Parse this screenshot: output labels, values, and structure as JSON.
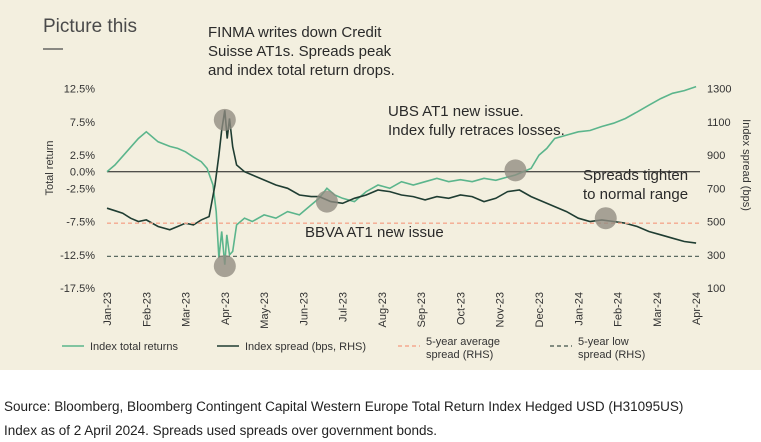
{
  "chart_data": {
    "type": "line",
    "title": "Picture this",
    "ylabel": "Total return",
    "y2label": "Index spread (bps)",
    "ylim": [
      -17.5,
      15
    ],
    "y2lim": [
      100,
      1400
    ],
    "yticks": [
      "12.5%",
      "7.5%",
      "2.5%",
      "0.0%",
      "-2.5%",
      "-7.5%",
      "-12.5%",
      "-17.5%"
    ],
    "yticks_values": [
      12.5,
      7.5,
      2.5,
      0,
      -2.5,
      -7.5,
      -12.5,
      -17.5
    ],
    "y2ticks": [
      "1300",
      "1100",
      "900",
      "700",
      "500",
      "300",
      "100"
    ],
    "y2ticks_values": [
      1300,
      1100,
      900,
      700,
      500,
      300,
      100
    ],
    "xticks": [
      "Jan-23",
      "Feb-23",
      "Mar-23",
      "Apr-23",
      "May-23",
      "Jun-23",
      "Jul-23",
      "Aug-23",
      "Sep-23",
      "Oct-23",
      "Nov-23",
      "Dec-23",
      "Jan-24",
      "Feb-24",
      "Mar-24",
      "Apr-24"
    ],
    "x_range": [
      0,
      15.1
    ],
    "grid": false,
    "legend_position": "bottom",
    "series": [
      {
        "name": "Index total returns",
        "axis": "left",
        "color": "#5bb58c",
        "x": [
          0,
          0.2,
          0.5,
          0.8,
          1.0,
          1.3,
          1.6,
          1.8,
          2.0,
          2.2,
          2.4,
          2.55,
          2.7,
          2.78,
          2.85,
          2.92,
          3.0,
          3.05,
          3.12,
          3.2,
          3.3,
          3.5,
          3.7,
          4.0,
          4.3,
          4.6,
          4.9,
          5.2,
          5.4,
          5.6,
          5.8,
          6.0,
          6.3,
          6.6,
          6.9,
          7.2,
          7.5,
          7.8,
          8.1,
          8.4,
          8.7,
          9.0,
          9.3,
          9.6,
          9.9,
          10.2,
          10.4,
          10.6,
          10.8,
          11.0,
          11.2,
          11.4,
          11.7,
          12.0,
          12.3,
          12.6,
          12.9,
          13.2,
          13.5,
          13.8,
          14.1,
          14.4,
          14.7,
          15.0
        ],
        "y": [
          0,
          1.0,
          3.0,
          5.0,
          6.0,
          4.5,
          3.8,
          3.5,
          3.0,
          2.2,
          1.5,
          0.5,
          -2.0,
          -6.0,
          -13.0,
          -9.0,
          -14.0,
          -9.5,
          -12.5,
          -12.0,
          -8.0,
          -7.0,
          -7.5,
          -6.5,
          -7.0,
          -6.0,
          -6.5,
          -5.0,
          -4.0,
          -2.5,
          -3.5,
          -4.0,
          -4.5,
          -3.0,
          -2.0,
          -2.5,
          -1.5,
          -2.0,
          -1.5,
          -1.0,
          -1.5,
          -1.2,
          -1.5,
          -1.0,
          -1.3,
          -0.8,
          -0.5,
          0.0,
          0.5,
          2.5,
          3.5,
          5.0,
          5.5,
          6.0,
          6.2,
          6.8,
          7.3,
          8.0,
          9.0,
          10.0,
          11.0,
          11.8,
          12.2,
          12.8
        ]
      },
      {
        "name": "Index spread (bps, RHS)",
        "axis": "right",
        "color": "#1f3d32",
        "x": [
          0,
          0.2,
          0.4,
          0.6,
          0.8,
          1.0,
          1.3,
          1.6,
          1.8,
          2.0,
          2.2,
          2.4,
          2.6,
          2.75,
          2.85,
          2.92,
          3.0,
          3.06,
          3.12,
          3.2,
          3.3,
          3.5,
          3.7,
          4.0,
          4.3,
          4.6,
          4.9,
          5.2,
          5.4,
          5.7,
          6.0,
          6.3,
          6.6,
          6.9,
          7.2,
          7.5,
          7.8,
          8.1,
          8.4,
          8.7,
          9.0,
          9.3,
          9.6,
          9.9,
          10.2,
          10.5,
          10.8,
          11.1,
          11.4,
          11.7,
          12.0,
          12.3,
          12.6,
          12.9,
          13.2,
          13.5,
          13.8,
          14.1,
          14.4,
          14.7,
          15.0
        ],
        "y": [
          580,
          565,
          550,
          520,
          500,
          510,
          470,
          450,
          470,
          490,
          480,
          510,
          530,
          720,
          900,
          1050,
          1170,
          1000,
          1120,
          950,
          840,
          800,
          780,
          750,
          720,
          700,
          660,
          650,
          650,
          620,
          610,
          640,
          660,
          690,
          680,
          660,
          650,
          630,
          650,
          640,
          660,
          650,
          620,
          640,
          680,
          690,
          650,
          620,
          590,
          560,
          520,
          500,
          510,
          500,
          490,
          470,
          440,
          420,
          400,
          380,
          370
        ]
      },
      {
        "name": "5-year average spread (RHS)",
        "axis": "right",
        "color": "#f4a88f",
        "style": "dashed",
        "x": [
          0,
          15.1
        ],
        "y": [
          490,
          490
        ]
      },
      {
        "name": "5-year low spread (RHS)",
        "axis": "right",
        "color": "#5c6b62",
        "style": "dashed",
        "x": [
          0,
          15.1
        ],
        "y": [
          290,
          290
        ]
      }
    ],
    "annotations": [
      {
        "lines": [
          "FINMA writes down Credit",
          "Suisse AT1s. Spreads peak",
          "and index total return drops."
        ]
      },
      {
        "lines": [
          "UBS AT1 new issue.",
          "Index fully retraces losses."
        ]
      },
      {
        "lines": [
          "Spreads tighten",
          "to normal range"
        ]
      },
      {
        "lines": [
          "BBVA AT1 new issue"
        ]
      }
    ],
    "markers": [
      {
        "x": 3.0,
        "axis": "left",
        "y": 7.8
      },
      {
        "x": 3.0,
        "axis": "left",
        "y": -14.2
      },
      {
        "x": 5.6,
        "axis": "left",
        "y": -4.5
      },
      {
        "x": 10.4,
        "axis": "left",
        "y": 0.2
      },
      {
        "x": 12.7,
        "axis": "left",
        "y": -7.0
      }
    ]
  },
  "source_line1": "Source: Bloomberg, Bloomberg Contingent Capital Western Europe Total Return Index Hedged USD (H31095US)",
  "source_line2": "Index as of 2 April 2024. Spreads used spreads over government bonds."
}
